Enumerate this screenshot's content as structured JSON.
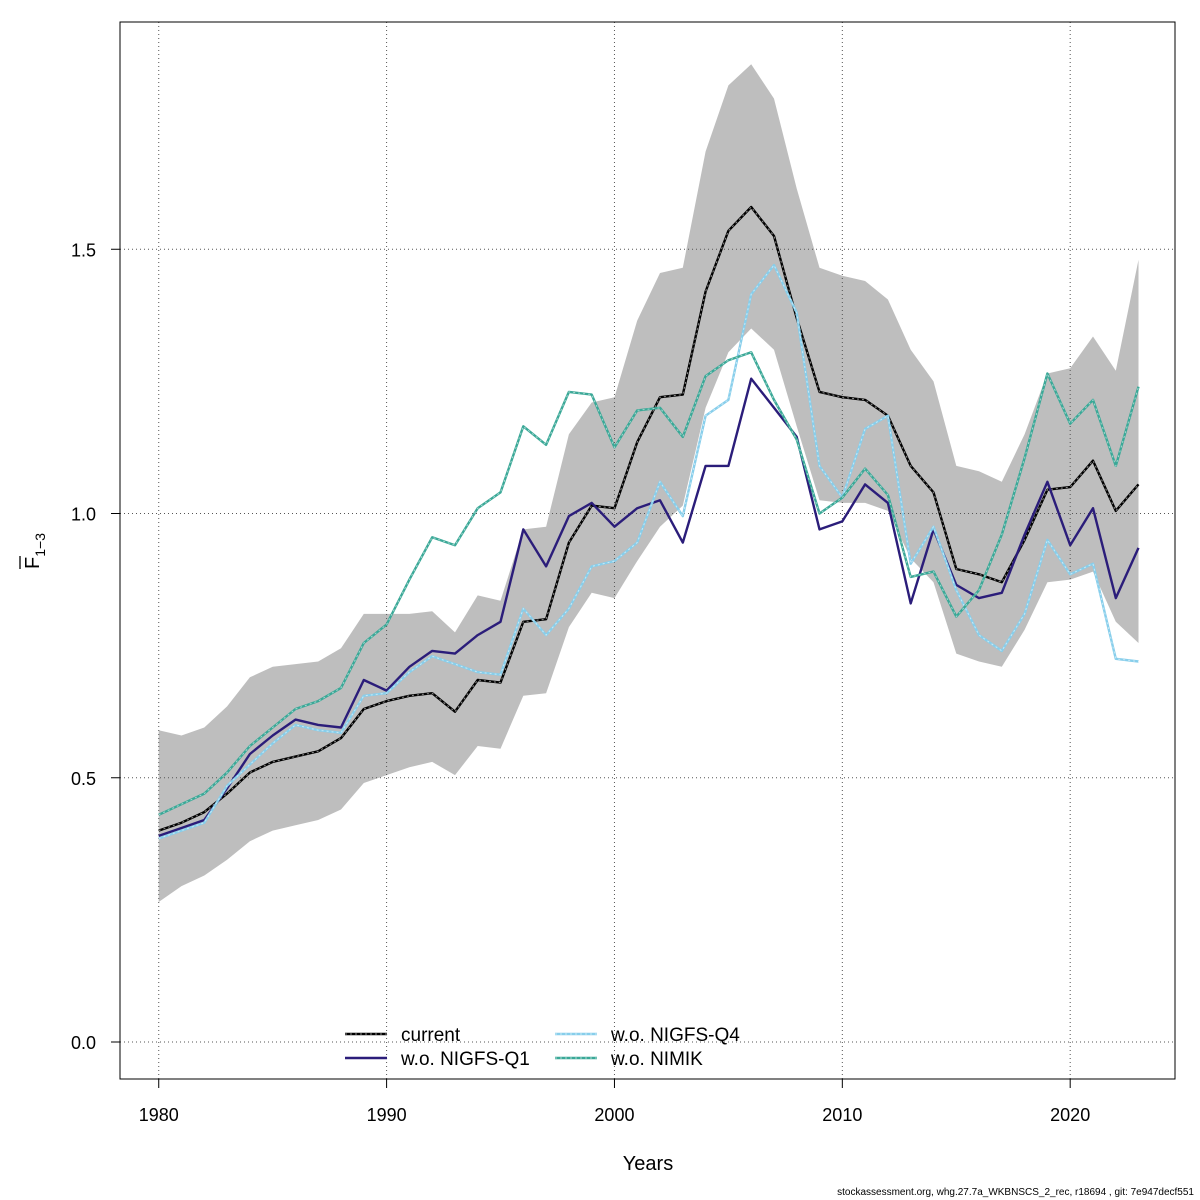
{
  "chart_data": {
    "type": "line",
    "xlabel": "Years",
    "ylabel_main": "F",
    "ylabel_sub": "1−3",
    "xlim": [
      1978.3,
      2024.6
    ],
    "ylim": [
      -0.07,
      1.93
    ],
    "x_ticks": [
      1980,
      1990,
      2000,
      2010,
      2020
    ],
    "y_ticks": [
      0.0,
      0.5,
      1.0,
      1.5
    ],
    "y_tick_labels": [
      "0.0",
      "0.5",
      "1.0",
      "1.5"
    ],
    "grid": true,
    "legend_placement": "bottom-center",
    "x": [
      1980,
      1981,
      1982,
      1983,
      1984,
      1985,
      1986,
      1987,
      1988,
      1989,
      1990,
      1991,
      1992,
      1993,
      1994,
      1995,
      1996,
      1997,
      1998,
      1999,
      2000,
      2001,
      2002,
      2003,
      2004,
      2005,
      2006,
      2007,
      2008,
      2009,
      2010,
      2011,
      2012,
      2013,
      2014,
      2015,
      2016,
      2017,
      2018,
      2019,
      2020,
      2021,
      2022,
      2023
    ],
    "band": {
      "color": "#bebebe",
      "upper": [
        0.59,
        0.58,
        0.595,
        0.635,
        0.69,
        0.71,
        0.715,
        0.72,
        0.745,
        0.81,
        0.81,
        0.81,
        0.815,
        0.775,
        0.845,
        0.835,
        0.97,
        0.975,
        1.15,
        1.21,
        1.22,
        1.365,
        1.455,
        1.465,
        1.685,
        1.81,
        1.85,
        1.785,
        1.615,
        1.465,
        1.45,
        1.44,
        1.405,
        1.31,
        1.25,
        1.09,
        1.08,
        1.06,
        1.15,
        1.265,
        1.275,
        1.335,
        1.27,
        1.48
      ],
      "lower": [
        0.265,
        0.295,
        0.315,
        0.345,
        0.38,
        0.4,
        0.41,
        0.42,
        0.44,
        0.49,
        0.505,
        0.52,
        0.53,
        0.505,
        0.56,
        0.555,
        0.655,
        0.66,
        0.785,
        0.85,
        0.84,
        0.91,
        0.975,
        1.015,
        1.2,
        1.305,
        1.35,
        1.31,
        1.165,
        1.025,
        1.02,
        1.02,
        1.005,
        0.915,
        0.87,
        0.735,
        0.72,
        0.71,
        0.78,
        0.87,
        0.875,
        0.89,
        0.795,
        0.755
      ]
    },
    "series": [
      {
        "name": "current",
        "color": "#000000",
        "dashed_overlay": true,
        "values": [
          0.4,
          0.415,
          0.435,
          0.47,
          0.51,
          0.53,
          0.54,
          0.55,
          0.575,
          0.63,
          0.645,
          0.655,
          0.66,
          0.625,
          0.685,
          0.68,
          0.795,
          0.8,
          0.945,
          1.015,
          1.01,
          1.135,
          1.22,
          1.225,
          1.42,
          1.535,
          1.58,
          1.525,
          1.37,
          1.23,
          1.22,
          1.215,
          1.185,
          1.09,
          1.04,
          0.895,
          0.885,
          0.87,
          0.95,
          1.045,
          1.05,
          1.1,
          1.005,
          1.055
        ]
      },
      {
        "name": "w.o. NIGFS-Q1",
        "color": "#2b1d7a",
        "dashed_overlay": false,
        "values": [
          0.39,
          0.405,
          0.42,
          0.48,
          0.545,
          0.58,
          0.61,
          0.6,
          0.595,
          0.685,
          0.665,
          0.71,
          0.74,
          0.735,
          0.77,
          0.795,
          0.97,
          0.9,
          0.995,
          1.02,
          0.975,
          1.01,
          1.025,
          0.945,
          1.09,
          1.09,
          1.255,
          1.2,
          1.145,
          0.97,
          0.985,
          1.055,
          1.02,
          0.83,
          0.97,
          0.865,
          0.84,
          0.85,
          0.96,
          1.06,
          0.94,
          1.01,
          0.84,
          0.935
        ]
      },
      {
        "name": "w.o. NIGFS-Q4",
        "color": "#87ceeb",
        "dashed_overlay": true,
        "values": [
          0.385,
          0.4,
          0.415,
          0.485,
          0.525,
          0.565,
          0.6,
          0.59,
          0.585,
          0.655,
          0.66,
          0.7,
          0.73,
          0.715,
          0.7,
          0.695,
          0.82,
          0.77,
          0.82,
          0.9,
          0.91,
          0.945,
          1.06,
          0.995,
          1.185,
          1.215,
          1.415,
          1.47,
          1.38,
          1.09,
          1.03,
          1.16,
          1.185,
          0.905,
          0.975,
          0.855,
          0.77,
          0.74,
          0.81,
          0.95,
          0.885,
          0.905,
          0.725,
          0.72
        ]
      },
      {
        "name": "w.o. NIMIK",
        "color": "#3aa897",
        "dashed_overlay": true,
        "values": [
          0.43,
          0.45,
          0.47,
          0.51,
          0.56,
          0.595,
          0.63,
          0.645,
          0.67,
          0.755,
          0.79,
          0.875,
          0.955,
          0.94,
          1.01,
          1.04,
          1.165,
          1.13,
          1.23,
          1.225,
          1.125,
          1.195,
          1.2,
          1.145,
          1.26,
          1.29,
          1.305,
          1.215,
          1.14,
          1.0,
          1.03,
          1.085,
          1.035,
          0.88,
          0.89,
          0.805,
          0.855,
          0.96,
          1.105,
          1.265,
          1.17,
          1.215,
          1.09,
          1.24
        ]
      }
    ]
  },
  "legend": {
    "items": [
      "current",
      "w.o. NIGFS-Q1",
      "w.o. NIGFS-Q4",
      "w.o. NIMIK"
    ]
  },
  "footer_text": "stockassessment.org, whg.27.7a_WKBNSCS_2_rec, r18694 , git: 7e947decf551"
}
